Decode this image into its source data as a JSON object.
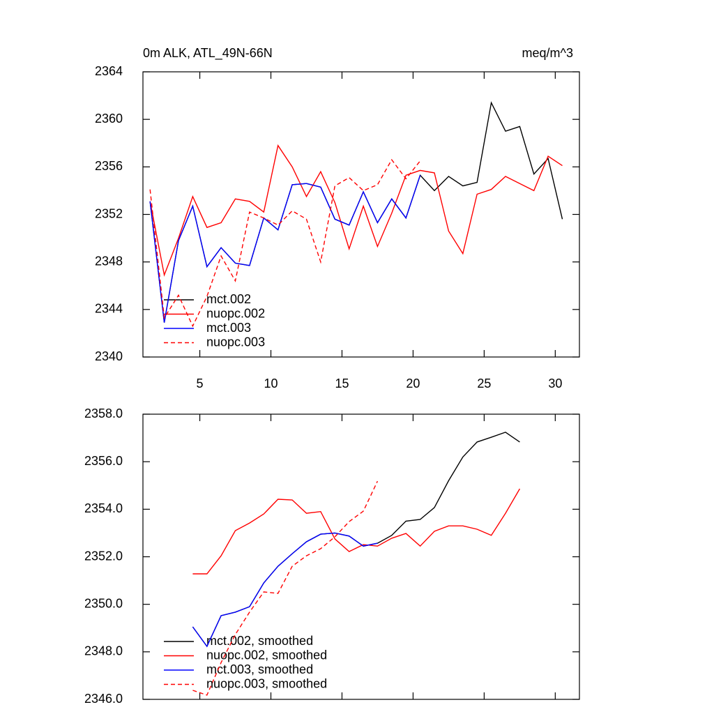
{
  "chart_data": [
    {
      "type": "line",
      "title": "0m ALK, ATL_49N-66N",
      "right_title": "meq/m^3",
      "x": [
        1.5,
        2.5,
        3.5,
        4.5,
        5.5,
        6.5,
        7.5,
        8.5,
        9.5,
        10.5,
        11.5,
        12.5,
        13.5,
        14.5,
        15.5,
        16.5,
        17.5,
        18.5,
        19.5,
        20.5,
        21.5,
        22.5,
        23.5,
        24.5,
        25.5,
        26.5,
        27.5,
        28.5,
        29.5,
        30.5
      ],
      "xlim": [
        1,
        31.7
      ],
      "xticks": [
        5,
        10,
        15,
        20,
        25,
        30
      ],
      "ylim": [
        2340,
        2364
      ],
      "yticks": [
        2340,
        2344,
        2348,
        2352,
        2356,
        2360,
        2364
      ],
      "series": [
        {
          "name": "mct.002",
          "color": "#000000",
          "line_style": "solid",
          "values": [
            2353.1,
            2342.9,
            2349.8,
            2352.7,
            2347.6,
            2349.2,
            2347.9,
            2347.7,
            2351.7,
            2350.7,
            2354.5,
            2354.6,
            2354.3,
            2351.6,
            2351.1,
            2353.9,
            2351.3,
            2353.3,
            2351.7,
            2355.3,
            2354.0,
            2355.2,
            2354.4,
            2354.7,
            2361.4,
            2359.0,
            2359.4,
            2355.4,
            2356.7,
            2351.6
          ]
        },
        {
          "name": "nuopc.002",
          "color": "#ff0000",
          "line_style": "solid",
          "values": [
            2353.1,
            2346.9,
            2350.0,
            2353.5,
            2350.9,
            2351.3,
            2353.3,
            2353.1,
            2352.2,
            2357.8,
            2356.0,
            2353.5,
            2355.6,
            2353.0,
            2349.1,
            2352.7,
            2349.3,
            2352.1,
            2355.3,
            2355.7,
            2355.5,
            2350.6,
            2348.7,
            2353.7,
            2354.1,
            2355.2,
            2354.6,
            2354.0,
            2356.9,
            2356.1
          ]
        },
        {
          "name": "mct.003",
          "color": "#0000ff",
          "line_style": "solid",
          "values": [
            2353.1,
            2342.9,
            2349.8,
            2352.7,
            2347.6,
            2349.2,
            2347.9,
            2347.7,
            2351.7,
            2350.7,
            2354.5,
            2354.6,
            2354.3,
            2351.6,
            2351.1,
            2353.9,
            2351.3,
            2353.3,
            2351.7,
            2355.3,
            null,
            null,
            null,
            null,
            null,
            null,
            null,
            null,
            null,
            null
          ]
        },
        {
          "name": "nuopc.003",
          "color": "#ff0000",
          "line_style": "dashed",
          "values": [
            2354.1,
            2343.3,
            2345.2,
            2342.6,
            2345.1,
            2348.5,
            2346.4,
            2352.2,
            2351.7,
            2351.1,
            2352.3,
            2351.6,
            2348.0,
            2354.4,
            2355.1,
            2354.0,
            2354.5,
            2356.6,
            2355.0,
            2356.5,
            null,
            null,
            null,
            null,
            null,
            null,
            null,
            null,
            null,
            null
          ]
        }
      ]
    },
    {
      "type": "line",
      "x": [
        4.5,
        5.5,
        6.5,
        7.5,
        8.5,
        9.5,
        10.5,
        11.5,
        12.5,
        13.5,
        14.5,
        15.5,
        16.5,
        17.5,
        18.5,
        19.5,
        20.5,
        21.5,
        22.5,
        23.5,
        24.5,
        25.5,
        26.5,
        27.5
      ],
      "xlim": [
        1,
        31.7
      ],
      "xticks": [
        5,
        10,
        15,
        20,
        25,
        30
      ],
      "ylim": [
        2346,
        2358
      ],
      "yticks": [
        {
          "value": 2346,
          "label": "2346.0"
        },
        {
          "value": 2348,
          "label": "2348.0"
        },
        {
          "value": 2350,
          "label": "2350.0"
        },
        {
          "value": 2352,
          "label": "2352.0"
        },
        {
          "value": 2354,
          "label": "2354.0"
        },
        {
          "value": 2356,
          "label": "2356.0"
        },
        {
          "value": 2358,
          "label": "2358.0"
        }
      ],
      "series": [
        {
          "name": "mct.002, smoothed",
          "color": "#000000",
          "line_style": "solid",
          "values": [
            2349.05,
            2348.23,
            2349.52,
            2349.67,
            2349.9,
            2350.9,
            2351.6,
            2352.13,
            2352.63,
            2352.95,
            2353.0,
            2352.87,
            2352.45,
            2352.57,
            2352.9,
            2353.5,
            2353.57,
            2354.07,
            2355.2,
            2356.2,
            2356.83,
            2357.03,
            2357.24,
            2356.83
          ]
        },
        {
          "name": "nuopc.002, smoothed",
          "color": "#ff0000",
          "line_style": "solid",
          "values": [
            2351.28,
            2351.28,
            2352.04,
            2353.1,
            2353.42,
            2353.8,
            2354.42,
            2354.39,
            2353.83,
            2353.9,
            2352.75,
            2352.22,
            2352.51,
            2352.45,
            2352.78,
            2352.98,
            2352.45,
            2353.07,
            2353.3,
            2353.3,
            2353.16,
            2352.9,
            2353.83,
            2354.86
          ]
        },
        {
          "name": "mct.003, smoothed",
          "color": "#0000ff",
          "line_style": "solid",
          "values": [
            2349.05,
            2348.23,
            2349.52,
            2349.67,
            2349.9,
            2350.9,
            2351.6,
            2352.13,
            2352.63,
            2352.95,
            2353.0,
            2352.87,
            2352.45,
            2352.57,
            null,
            null,
            null,
            null,
            null,
            null,
            null,
            null,
            null,
            null
          ]
        },
        {
          "name": "nuopc.003, smoothed",
          "color": "#ff0000",
          "line_style": "dashed",
          "values": [
            2346.38,
            2346.18,
            2347.55,
            2348.73,
            2349.67,
            2350.52,
            2350.46,
            2351.6,
            2352.04,
            2352.34,
            2352.84,
            2353.48,
            2353.92,
            2355.18,
            null,
            null,
            null,
            null,
            null,
            null,
            null,
            null,
            null,
            null
          ]
        }
      ]
    }
  ]
}
